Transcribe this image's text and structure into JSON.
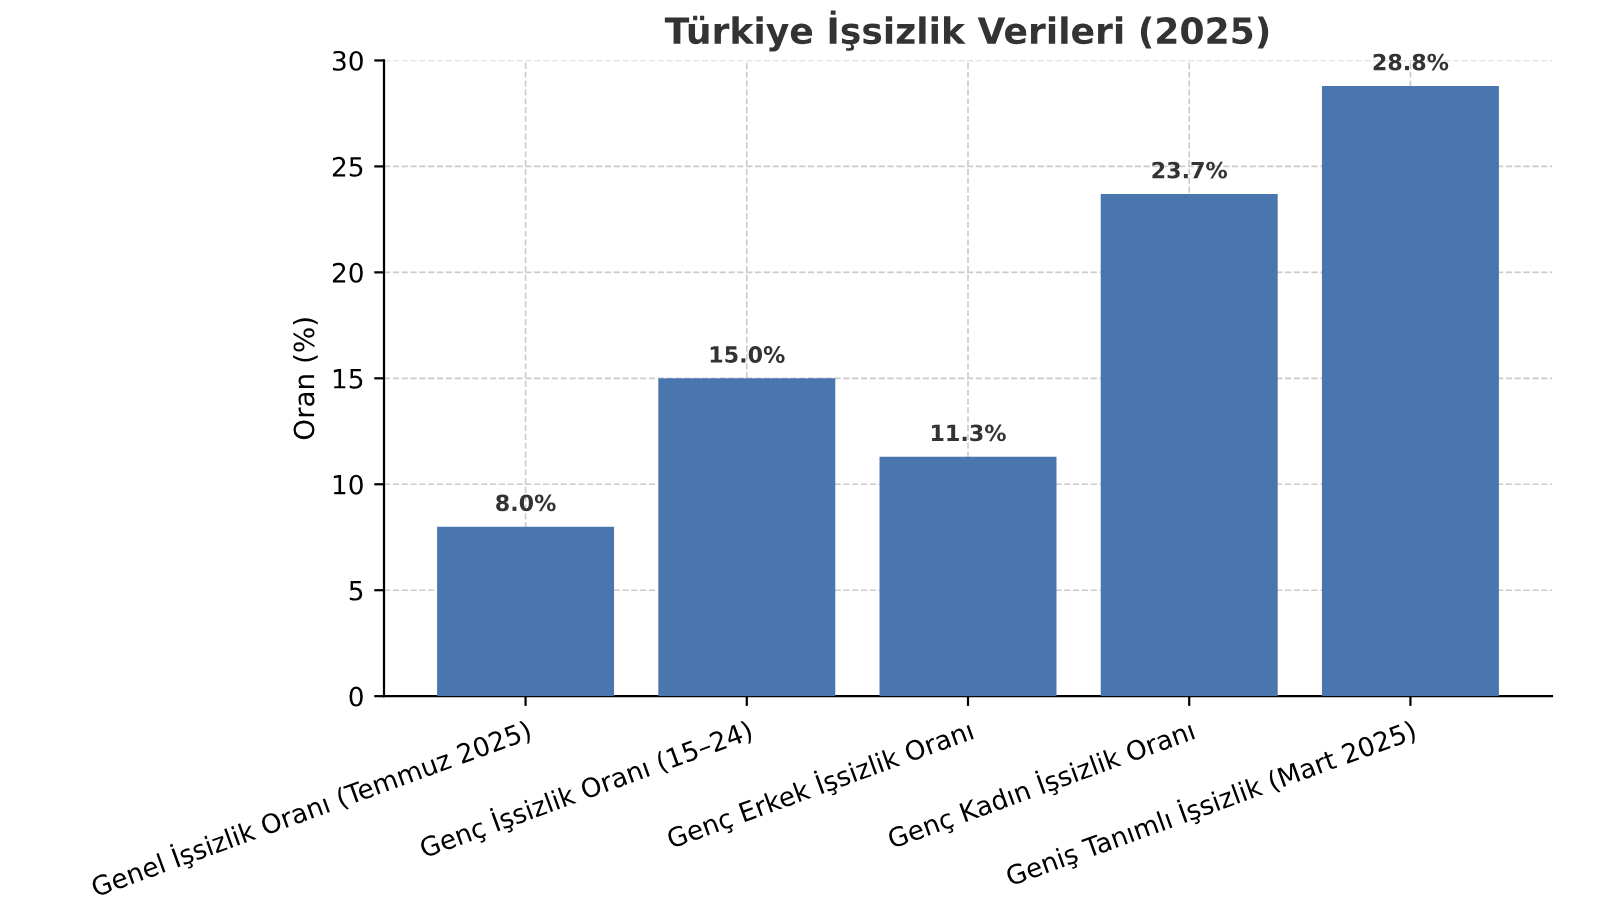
{
  "chart_data": {
    "type": "bar",
    "title": "Türkiye İşsizlik Verileri (2025)",
    "ylabel": "Oran (%)",
    "categories": [
      "Genel İşsizlik Oranı (Temmuz 2025)",
      "Genç İşsizlik Oranı (15–24)",
      "Genç Erkek İşsizlik Oranı",
      "Genç Kadın İşsizlik Oranı",
      "Geniş Tanımlı İşsizlik (Mart 2025)"
    ],
    "values": [
      8.0,
      15.0,
      11.3,
      23.7,
      28.8
    ],
    "value_labels": [
      "8.0%",
      "15.0%",
      "11.3%",
      "23.7%",
      "28.8%"
    ],
    "color": "#4a76b0",
    "ylim": [
      0,
      30
    ],
    "yticks": [
      0,
      5,
      10,
      15,
      20,
      25,
      30
    ],
    "grid": true
  }
}
